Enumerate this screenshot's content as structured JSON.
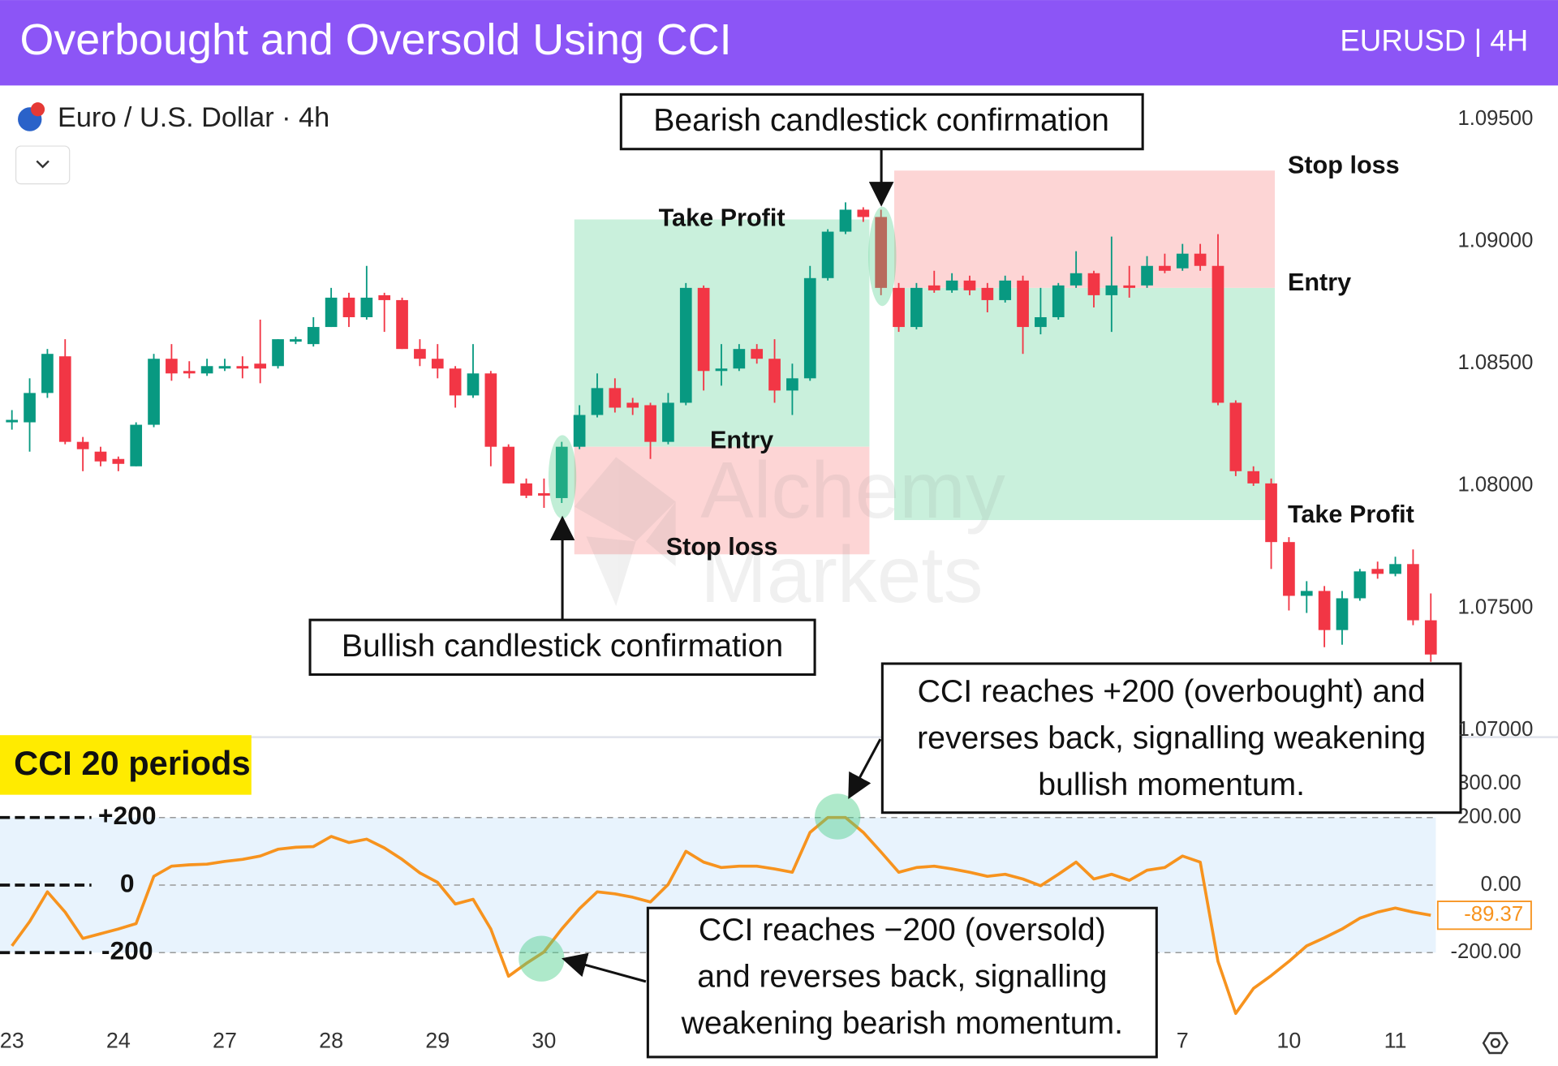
{
  "header": {
    "title": "Overbought and Oversold Using CCI",
    "symbol": "EURUSD | 4H"
  },
  "chart_data": [
    {
      "type": "candlestick",
      "instrument": "Euro / U.S. Dollar · 4h",
      "categories": [
        "23",
        null,
        null,
        null,
        null,
        null,
        "24",
        null,
        null,
        null,
        null,
        null,
        "27",
        null,
        null,
        null,
        null,
        null,
        "28",
        null,
        null,
        null,
        null,
        null,
        "29",
        null,
        null,
        null,
        null,
        null,
        "30",
        null,
        null,
        null,
        null,
        null,
        null,
        null,
        null,
        null,
        null,
        null,
        null,
        null,
        null,
        null,
        null,
        null,
        null,
        null,
        null,
        null,
        null,
        null,
        null,
        null,
        null,
        null,
        null,
        null,
        null,
        null,
        null,
        null,
        null,
        null,
        "7",
        null,
        null,
        null,
        null,
        null,
        "10",
        null,
        null,
        null,
        null,
        null,
        "11",
        null,
        null
      ],
      "open": [
        1.0826,
        1.0826,
        1.0838,
        1.0853,
        1.0818,
        1.0814,
        1.0811,
        1.0808,
        1.0825,
        1.0852,
        1.0847,
        1.0846,
        1.0848,
        1.0849,
        1.085,
        1.0849,
        1.0859,
        1.0858,
        1.0865,
        1.0877,
        1.0869,
        1.0878,
        1.0876,
        1.0856,
        1.0852,
        1.0848,
        1.0837,
        1.0846,
        1.0816,
        1.0801,
        1.0797,
        1.0795,
        1.0816,
        1.0829,
        1.084,
        1.0834,
        1.0833,
        1.0818,
        1.0834,
        1.0881,
        1.0847,
        1.0848,
        1.0856,
        1.0852,
        1.0839,
        1.0844,
        1.0885,
        1.0904,
        1.0913,
        1.091,
        1.0881,
        1.0865,
        1.0882,
        1.088,
        1.0884,
        1.0881,
        1.0876,
        1.0884,
        1.0865,
        1.0869,
        1.0882,
        1.0887,
        1.0878,
        1.0882,
        1.0882,
        1.089,
        1.0889,
        1.0895,
        1.089,
        1.0834,
        1.0806,
        1.0801,
        1.0777,
        1.0755,
        1.0757,
        1.0741,
        1.0754,
        1.0766,
        1.0764,
        1.0768,
        1.0745
      ],
      "high": [
        1.0831,
        1.0844,
        1.0856,
        1.086,
        1.082,
        1.0816,
        1.0812,
        1.0826,
        1.0854,
        1.0858,
        1.0851,
        1.0852,
        1.0852,
        1.0853,
        1.0868,
        1.086,
        1.0861,
        1.0869,
        1.0881,
        1.0879,
        1.089,
        1.0879,
        1.0877,
        1.086,
        1.0858,
        1.0849,
        1.0858,
        1.0847,
        1.0817,
        1.0803,
        1.0803,
        1.0818,
        1.0833,
        1.0846,
        1.0844,
        1.0836,
        1.0834,
        1.0838,
        1.0883,
        1.0882,
        1.0858,
        1.0858,
        1.0858,
        1.086,
        1.085,
        1.089,
        1.0905,
        1.0916,
        1.0914,
        1.0913,
        1.0883,
        1.0883,
        1.0888,
        1.0887,
        1.0886,
        1.0883,
        1.0886,
        1.0886,
        1.0881,
        1.0883,
        1.0896,
        1.0888,
        1.0902,
        1.089,
        1.0894,
        1.0895,
        1.0899,
        1.0899,
        1.0903,
        1.0835,
        1.0808,
        1.0803,
        1.0779,
        1.0761,
        1.0759,
        1.0757,
        1.0766,
        1.0769,
        1.0771,
        1.0774,
        1.0756
      ],
      "low": [
        1.0823,
        1.0814,
        1.0836,
        1.0817,
        1.0806,
        1.0808,
        1.0806,
        1.0808,
        1.0824,
        1.0843,
        1.0844,
        1.0845,
        1.0847,
        1.0844,
        1.0842,
        1.0848,
        1.0858,
        1.0857,
        1.0865,
        1.0865,
        1.0868,
        1.0863,
        1.0856,
        1.0849,
        1.0844,
        1.0832,
        1.0836,
        1.0808,
        1.0801,
        1.0795,
        1.0791,
        1.0793,
        1.0815,
        1.0828,
        1.083,
        1.0829,
        1.0811,
        1.0817,
        1.0833,
        1.0839,
        1.0841,
        1.0847,
        1.085,
        1.0834,
        1.0829,
        1.0843,
        1.0884,
        1.0903,
        1.0908,
        1.0878,
        1.0863,
        1.0864,
        1.0879,
        1.0879,
        1.0878,
        1.0871,
        1.0875,
        1.0854,
        1.0862,
        1.0868,
        1.0881,
        1.0873,
        1.0863,
        1.0877,
        1.0881,
        1.0887,
        1.0888,
        1.0888,
        1.0833,
        1.0804,
        1.08,
        1.0766,
        1.0749,
        1.0748,
        1.0734,
        1.0735,
        1.0753,
        1.0762,
        1.0763,
        1.0743,
        1.0728
      ],
      "close": [
        1.0827,
        1.0838,
        1.0854,
        1.0818,
        1.0815,
        1.081,
        1.0809,
        1.0825,
        1.0852,
        1.0846,
        1.0846,
        1.0849,
        1.0849,
        1.0848,
        1.0848,
        1.086,
        1.086,
        1.0865,
        1.0877,
        1.0869,
        1.0877,
        1.0876,
        1.0856,
        1.0852,
        1.0848,
        1.0837,
        1.0846,
        1.0816,
        1.0801,
        1.0796,
        1.0796,
        1.0816,
        1.0829,
        1.084,
        1.0832,
        1.0832,
        1.0818,
        1.0834,
        1.0881,
        1.0847,
        1.0848,
        1.0856,
        1.0852,
        1.0839,
        1.0844,
        1.0885,
        1.0904,
        1.0913,
        1.091,
        1.0881,
        1.0865,
        1.0881,
        1.088,
        1.0884,
        1.088,
        1.0876,
        1.0884,
        1.0865,
        1.0869,
        1.0882,
        1.0887,
        1.0878,
        1.0882,
        1.0881,
        1.089,
        1.0888,
        1.0895,
        1.089,
        1.0834,
        1.0806,
        1.0801,
        1.0777,
        1.0755,
        1.0757,
        1.0741,
        1.0754,
        1.0765,
        1.0764,
        1.0768,
        1.0745,
        1.0731
      ],
      "up_color": "#089981",
      "down_color": "#f23645",
      "ylim": [
        1.0698,
        1.0963
      ],
      "yticks": [
        {
          "value": 1.095,
          "label": "1.09500"
        },
        {
          "value": 1.09,
          "label": "1.09000"
        },
        {
          "value": 1.085,
          "label": "1.08500"
        },
        {
          "value": 1.08,
          "label": "1.08000"
        },
        {
          "value": 1.075,
          "label": "1.07500"
        },
        {
          "value": 1.07,
          "label": "1.07000"
        }
      ],
      "positions": [
        {
          "take_profit": 1.0909,
          "entry": 1.0816,
          "stop_loss": 1.0772,
          "labels": {
            "take_profit": "Take Profit",
            "entry": "Entry",
            "stop_loss": "Stop loss"
          }
        },
        {
          "take_profit": 1.0786,
          "entry": 1.0881,
          "stop_loss": 1.0929,
          "labels": {
            "take_profit": "Take Profit",
            "entry": "Entry",
            "stop_loss": "Stop loss"
          }
        }
      ],
      "annotations": {
        "bearish": "Bearish candlestick confirmation",
        "bullish": "Bullish candlestick confirmation"
      },
      "watermark": [
        "Alchemy",
        "Markets"
      ]
    },
    {
      "type": "line",
      "title": "CCI 20 periods",
      "color": "#f7931e",
      "values": [
        -180,
        -108,
        -20,
        -80,
        -158,
        -144,
        -130,
        -114,
        26,
        56,
        60,
        62,
        70,
        76,
        86,
        106,
        112,
        114,
        144,
        126,
        136,
        110,
        76,
        36,
        8,
        -56,
        -42,
        -130,
        -270,
        -232,
        -198,
        -130,
        -70,
        -20,
        -26,
        -36,
        -50,
        2,
        100,
        68,
        52,
        56,
        56,
        48,
        38,
        156,
        200,
        200,
        156,
        98,
        38,
        52,
        56,
        48,
        38,
        26,
        32,
        18,
        -2,
        32,
        68,
        18,
        32,
        14,
        44,
        52,
        86,
        68,
        -226,
        -380,
        -306,
        -268,
        -226,
        -180,
        -156,
        -130,
        -98,
        -80,
        -68,
        -80,
        -89.37
      ],
      "ylim": [
        -409,
        438
      ],
      "yticks": [
        {
          "value": 300,
          "label": "300.00"
        },
        {
          "value": 200,
          "label": "200.00"
        },
        {
          "value": 0,
          "label": "0.00"
        },
        {
          "value": -200,
          "label": "-200.00"
        }
      ],
      "levels": [
        200,
        0,
        -200
      ],
      "level_labels": [
        "+200",
        "0",
        "-200"
      ],
      "annotations": {
        "overbought": [
          "CCI reaches +200 (overbought) and",
          "reverses back, signalling weakening",
          "bullish momentum."
        ],
        "oversold": [
          "CCI reaches −200 (oversold)",
          "and reverses back, signalling",
          "weakening bearish momentum."
        ]
      }
    }
  ]
}
